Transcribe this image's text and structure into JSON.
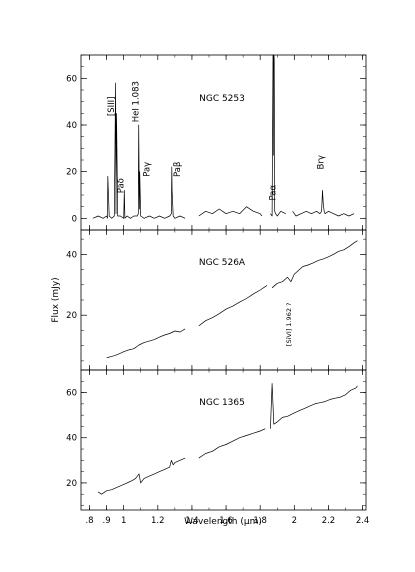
{
  "chart_data": {
    "type": "line",
    "xlabel": "Wavelength (μm)",
    "ylabel": "Flux (mJy)",
    "x_ticks": [
      ".8",
      ".9",
      "1",
      "1.2",
      "1.4",
      "1.6",
      "1.8",
      "2",
      "2.2",
      "2.4"
    ],
    "x_tick_values": [
      0.8,
      0.9,
      1.0,
      1.2,
      1.4,
      1.6,
      1.8,
      2.0,
      2.2,
      2.4
    ],
    "xlim": [
      0.75,
      2.42
    ],
    "panels": [
      {
        "name": "NGC 5253",
        "ylim": [
          -5,
          70
        ],
        "yticks": [
          0,
          20,
          40,
          60
        ],
        "gaps": [
          [
            1.36,
            1.44
          ],
          [
            1.81,
            1.86
          ],
          [
            1.95,
            1.99
          ]
        ],
        "line_labels": [
          {
            "text": "[SIII]",
            "x": 0.944,
            "y": 48,
            "vertical": true
          },
          {
            "text": "HeI 1.083",
            "x": 1.087,
            "y": 50,
            "vertical": true
          },
          {
            "text": "Paδ",
            "x": 1.0,
            "y": 14,
            "vertical": true
          },
          {
            "text": "Paγ",
            "x": 1.15,
            "y": 21,
            "vertical": true
          },
          {
            "text": "Paβ",
            "x": 1.33,
            "y": 21,
            "vertical": true
          },
          {
            "text": "Paα",
            "x": 1.89,
            "y": 11,
            "vertical": true
          },
          {
            "text": "Brγ",
            "x": 2.17,
            "y": 24,
            "vertical": true
          }
        ],
        "series": [
          {
            "x": [
              0.82,
              0.85,
              0.88,
              0.9,
              0.905,
              0.907,
              0.915,
              0.93,
              0.945,
              0.953,
              0.955,
              0.958,
              0.965,
              0.98,
              1.0,
              1.004,
              1.007,
              1.02,
              1.04,
              1.06,
              1.08,
              1.086,
              1.088,
              1.092,
              1.094,
              1.1,
              1.12,
              1.15,
              1.18,
              1.21,
              1.24,
              1.27,
              1.28,
              1.282,
              1.284,
              1.29,
              1.3,
              1.33,
              1.36
            ],
            "y": [
              0,
              1,
              0,
              1,
              0,
              18,
              1,
              0,
              1,
              58,
              2,
              45,
              1,
              1,
              0,
              12,
              0,
              1,
              0,
              1,
              1,
              2,
              40,
              4,
              20,
              1,
              0,
              1,
              0,
              1,
              0,
              1,
              2,
              22,
              12,
              1,
              0,
              1,
              0
            ]
          },
          {
            "x": [
              1.44,
              1.48,
              1.52,
              1.56,
              1.6,
              1.64,
              1.68,
              1.72,
              1.76,
              1.8,
              1.81
            ],
            "y": [
              1,
              3,
              2,
              4,
              2,
              3,
              2,
              5,
              3,
              2,
              1
            ]
          },
          {
            "x": [
              1.86,
              1.87,
              1.875,
              1.876,
              1.877,
              1.878,
              1.88,
              1.881,
              1.882,
              1.885,
              1.89,
              1.9,
              1.92,
              1.95
            ],
            "y": [
              2,
              1,
              70,
              70,
              27,
              65,
              69,
              70,
              68,
              3,
              2,
              1,
              3,
              2
            ]
          },
          {
            "x": [
              1.99,
              2.01,
              2.04,
              2.07,
              2.1,
              2.13,
              2.15,
              2.16,
              2.165,
              2.17,
              2.175,
              2.18,
              2.2,
              2.23,
              2.26,
              2.29,
              2.32,
              2.35
            ],
            "y": [
              3,
              1,
              2,
              3,
              2,
              3,
              2,
              3,
              12,
              6,
              3,
              2,
              3,
              2,
              1,
              2,
              1,
              2
            ]
          }
        ]
      },
      {
        "name": "NGC 526A",
        "ylim": [
          2,
          48
        ],
        "yticks": [
          20,
          40
        ],
        "line_labels": [
          {
            "text": "[SiVI] 1.962 ?",
            "x": 1.98,
            "y": 17,
            "vertical": true
          }
        ],
        "series": [
          {
            "x": [
              0.9,
              0.92,
              0.95,
              0.98,
              1.0,
              1.03,
              1.06,
              1.09,
              1.12,
              1.15,
              1.18,
              1.21,
              1.24,
              1.27,
              1.3,
              1.33,
              1.36
            ],
            "y": [
              6.0,
              6.3,
              6.8,
              7.5,
              8.0,
              8.6,
              9.0,
              10.2,
              11.0,
              11.5,
              12.0,
              12.8,
              13.5,
              14.0,
              14.8,
              14.5,
              15.5
            ]
          },
          {
            "x": [
              1.44,
              1.48,
              1.52,
              1.56,
              1.6,
              1.64,
              1.68,
              1.72,
              1.76,
              1.8,
              1.84
            ],
            "y": [
              16.5,
              18.2,
              19.2,
              20.5,
              22.0,
              23.0,
              24.3,
              25.5,
              27.0,
              28.3,
              29.8
            ]
          },
          {
            "x": [
              1.87,
              1.9,
              1.93,
              1.96,
              1.98,
              2.0,
              2.02,
              2.05,
              2.08,
              2.11,
              2.14,
              2.17,
              2.2,
              2.23,
              2.26,
              2.29,
              2.32,
              2.35,
              2.37
            ],
            "y": [
              29.0,
              30.5,
              31.0,
              32.5,
              31.0,
              33.5,
              34.5,
              36.0,
              36.5,
              37.2,
              38.0,
              38.5,
              39.2,
              40.0,
              41.0,
              41.5,
              42.5,
              43.8,
              44.5
            ]
          }
        ]
      },
      {
        "name": "NGC 1365",
        "ylim": [
          8,
          70
        ],
        "yticks": [
          20,
          40,
          60
        ],
        "series": [
          {
            "x": [
              0.85,
              0.87,
              0.9,
              0.93,
              0.96,
              0.99,
              1.02,
              1.05,
              1.07,
              1.09,
              1.1,
              1.12,
              1.15,
              1.18,
              1.21,
              1.24,
              1.27,
              1.28,
              1.29,
              1.3,
              1.33,
              1.36
            ],
            "y": [
              16,
              15,
              16.5,
              17,
              18,
              19,
              20,
              21,
              22,
              24,
              20,
              22,
              23,
              24,
              25,
              26,
              27,
              30,
              28,
              29,
              30,
              31
            ]
          },
          {
            "x": [
              1.44,
              1.48,
              1.52,
              1.56,
              1.6,
              1.64,
              1.68,
              1.72,
              1.76,
              1.8,
              1.83
            ],
            "y": [
              31,
              33,
              34,
              36,
              37,
              38.5,
              40,
              41,
              42,
              43,
              44
            ]
          },
          {
            "x": [
              1.86,
              1.87,
              1.88,
              1.9,
              1.93,
              1.96,
              2.0,
              2.03,
              2.06,
              2.09,
              2.12,
              2.15,
              2.18,
              2.21,
              2.24,
              2.27,
              2.3,
              2.33,
              2.36,
              2.37
            ],
            "y": [
              44,
              64,
              46,
              47,
              49,
              49.5,
              51,
              52,
              53,
              54,
              55,
              55.5,
              56,
              57,
              57.5,
              58,
              59,
              61,
              62,
              63
            ]
          }
        ]
      }
    ]
  }
}
